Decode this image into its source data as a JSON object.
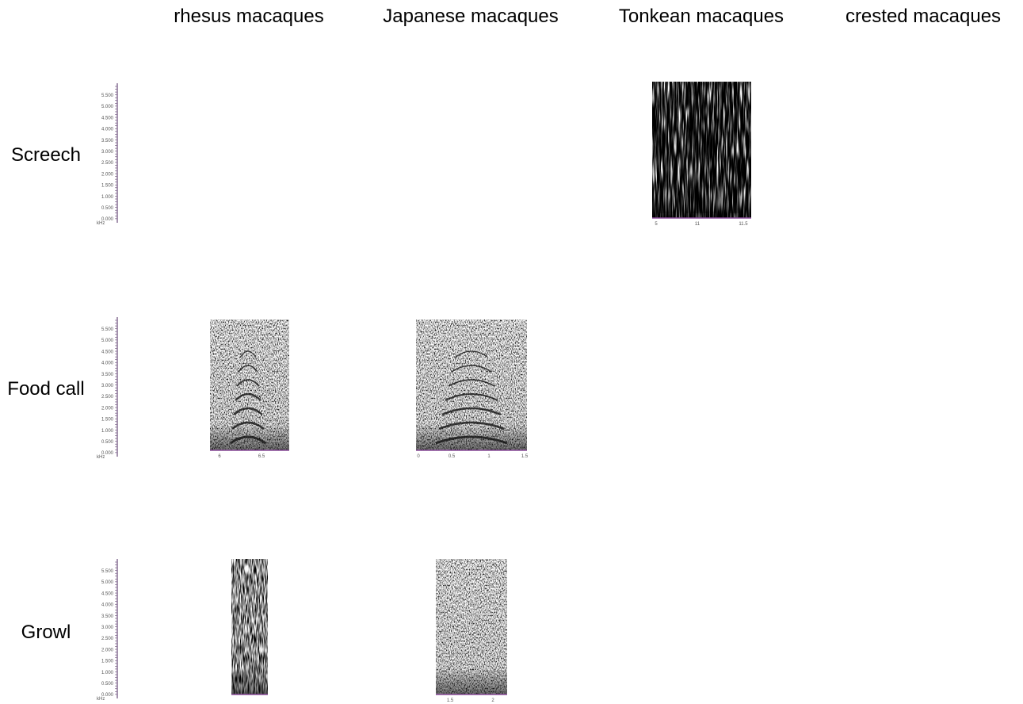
{
  "columns": [
    "rhesus macaques",
    "Japanese macaques",
    "Tonkean macaques",
    "crested macaques"
  ],
  "rows": [
    "Screech",
    "Food call",
    "Growl"
  ],
  "frequency_axis": {
    "ticks": [
      "5.500",
      "5.000",
      "4.500",
      "4.000",
      "3.500",
      "3.000",
      "2.500",
      "2.000",
      "1.500",
      "1.000",
      "0.500",
      "0.000"
    ],
    "unit": "kHz"
  },
  "spectrograms": [
    {
      "time_ticks": [
        "5",
        "11",
        "11.5"
      ]
    },
    {
      "time_ticks": [
        "6",
        "6.5"
      ]
    },
    {
      "time_ticks": [
        "0",
        "0.5",
        "1",
        "1.5"
      ]
    },
    {
      "time_ticks": []
    },
    {
      "time_ticks": [
        "1.5",
        "2"
      ]
    }
  ]
}
